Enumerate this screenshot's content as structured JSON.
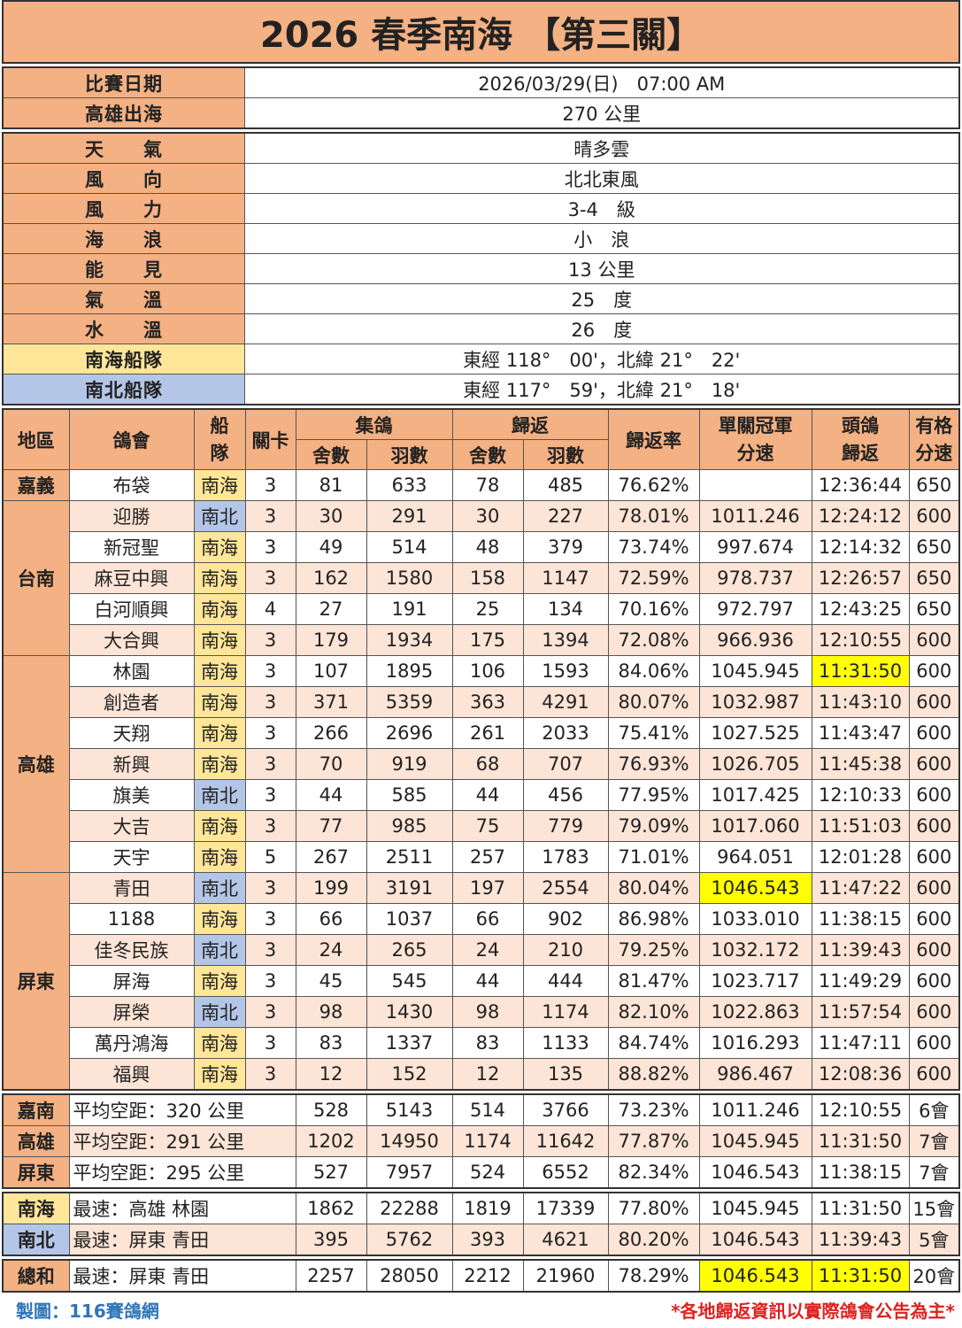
{
  "title": "2026 春季南海 【第三關】",
  "info1": [
    {
      "label": "比賽日期",
      "value": "2026/03/29(日)　07:00 AM"
    },
    {
      "label": "高雄出海",
      "value": "270 公里"
    }
  ],
  "info2": [
    {
      "label": "天　　氣",
      "value": "晴多雲",
      "cls": "or"
    },
    {
      "label": "風　　向",
      "value": "北北東風",
      "cls": "or"
    },
    {
      "label": "風　　力",
      "value": "3-4　級",
      "cls": "or"
    },
    {
      "label": "海　　浪",
      "value": "小　浪",
      "cls": "or"
    },
    {
      "label": "能　　見",
      "value": "13 公里",
      "cls": "or"
    },
    {
      "label": "氣　　溫",
      "value": "25　度",
      "cls": "or"
    },
    {
      "label": "水　　溫",
      "value": "26　度",
      "cls": "or"
    },
    {
      "label": "南海船隊",
      "value": "東經 118°　00'，北緯 21°　22'",
      "cls": "ylw"
    },
    {
      "label": "南北船隊",
      "value": "東經 117°　59'，北緯 21°　18'",
      "cls": "blu"
    }
  ],
  "headers": {
    "region": "地區",
    "club": "鴿會",
    "team": "船\n隊",
    "stage": "關卡",
    "collect": "集鴿",
    "ret": "歸返",
    "lofts": "舍數",
    "birds": "羽數",
    "rate": "歸返率",
    "speed": "單關冠軍\n分速",
    "first": "頭鴿\n歸返",
    "qual": "有格\n分速"
  },
  "colors": {
    "orange": "#F4B183",
    "pink": "#FCE4D6",
    "nanhai": "#FFE699",
    "nanbei": "#B4C6E7",
    "highlight": "#FFFF00"
  },
  "regions": [
    {
      "name": "嘉義",
      "rows": [
        [
          "布袋",
          "南海",
          "3",
          "81",
          "633",
          "78",
          "485",
          "76.62%",
          "",
          "12:36:44",
          "650"
        ]
      ]
    },
    {
      "name": "台南",
      "rows": [
        [
          "迎勝",
          "南北",
          "3",
          "30",
          "291",
          "30",
          "227",
          "78.01%",
          "1011.246",
          "12:24:12",
          "600"
        ],
        [
          "新冠聖",
          "南海",
          "3",
          "49",
          "514",
          "48",
          "379",
          "73.74%",
          "997.674",
          "12:14:32",
          "650"
        ],
        [
          "麻豆中興",
          "南海",
          "3",
          "162",
          "1580",
          "158",
          "1147",
          "72.59%",
          "978.737",
          "12:26:57",
          "650"
        ],
        [
          "白河順興",
          "南海",
          "4",
          "27",
          "191",
          "25",
          "134",
          "70.16%",
          "972.797",
          "12:43:25",
          "650"
        ],
        [
          "大合興",
          "南海",
          "3",
          "179",
          "1934",
          "175",
          "1394",
          "72.08%",
          "966.936",
          "12:10:55",
          "600"
        ]
      ]
    },
    {
      "name": "高雄",
      "rows": [
        [
          "林園",
          "南海",
          "3",
          "107",
          "1895",
          "106",
          "1593",
          "84.06%",
          "1045.945",
          "11:31:50",
          "600"
        ],
        [
          "創造者",
          "南海",
          "3",
          "371",
          "5359",
          "363",
          "4291",
          "80.07%",
          "1032.987",
          "11:43:10",
          "600"
        ],
        [
          "天翔",
          "南海",
          "3",
          "266",
          "2696",
          "261",
          "2033",
          "75.41%",
          "1027.525",
          "11:43:47",
          "600"
        ],
        [
          "新興",
          "南海",
          "3",
          "70",
          "919",
          "68",
          "707",
          "76.93%",
          "1026.705",
          "11:45:38",
          "600"
        ],
        [
          "旗美",
          "南北",
          "3",
          "44",
          "585",
          "44",
          "456",
          "77.95%",
          "1017.425",
          "12:10:33",
          "600"
        ],
        [
          "大吉",
          "南海",
          "3",
          "77",
          "985",
          "75",
          "779",
          "79.09%",
          "1017.060",
          "11:51:03",
          "600"
        ],
        [
          "天宇",
          "南海",
          "5",
          "267",
          "2511",
          "257",
          "1783",
          "71.01%",
          "964.051",
          "12:01:28",
          "600"
        ]
      ]
    },
    {
      "name": "屏東",
      "rows": [
        [
          "青田",
          "南北",
          "3",
          "199",
          "3191",
          "197",
          "2554",
          "80.04%",
          "1046.543",
          "11:47:22",
          "600"
        ],
        [
          "1188",
          "南海",
          "3",
          "66",
          "1037",
          "66",
          "902",
          "86.98%",
          "1033.010",
          "11:38:15",
          "600"
        ],
        [
          "佳冬民族",
          "南北",
          "3",
          "24",
          "265",
          "24",
          "210",
          "79.25%",
          "1032.172",
          "11:39:43",
          "600"
        ],
        [
          "屏海",
          "南海",
          "3",
          "45",
          "545",
          "44",
          "444",
          "81.47%",
          "1023.717",
          "11:49:29",
          "600"
        ],
        [
          "屏榮",
          "南北",
          "3",
          "98",
          "1430",
          "98",
          "1174",
          "82.10%",
          "1022.863",
          "11:57:54",
          "600"
        ],
        [
          "萬丹鴻海",
          "南海",
          "3",
          "83",
          "1337",
          "83",
          "1133",
          "84.74%",
          "1016.293",
          "11:47:11",
          "600"
        ],
        [
          "福興",
          "南海",
          "3",
          "12",
          "152",
          "12",
          "135",
          "88.82%",
          "986.467",
          "12:08:36",
          "600"
        ]
      ]
    }
  ],
  "summary": [
    [
      [
        "嘉南",
        "平均空距：320 公里",
        "528",
        "5143",
        "514",
        "3766",
        "73.23%",
        "1011.246",
        "12:10:55",
        "6會"
      ],
      [
        "高雄",
        "平均空距：291 公里",
        "1202",
        "14950",
        "1174",
        "11642",
        "77.87%",
        "1045.945",
        "11:31:50",
        "7會"
      ],
      [
        "屏東",
        "平均空距：295 公里",
        "527",
        "7957",
        "524",
        "6552",
        "82.34%",
        "1046.543",
        "11:38:15",
        "7會"
      ]
    ],
    [
      [
        "南海",
        "最速：高雄 林園",
        "1862",
        "22288",
        "1819",
        "17339",
        "77.80%",
        "1045.945",
        "11:31:50",
        "15會"
      ],
      [
        "南北",
        "最速：屏東 青田",
        "395",
        "5762",
        "393",
        "4621",
        "80.20%",
        "1046.543",
        "11:39:43",
        "5會"
      ]
    ],
    [
      [
        "總和",
        "最速：屏東 青田",
        "2257",
        "28050",
        "2212",
        "21960",
        "78.29%",
        "1046.543",
        "11:31:50",
        "20會"
      ]
    ]
  ],
  "footer": {
    "credit": "製圖：116賽鴿網",
    "note": "*各地歸返資訊以實際鴿會公告為主*"
  }
}
